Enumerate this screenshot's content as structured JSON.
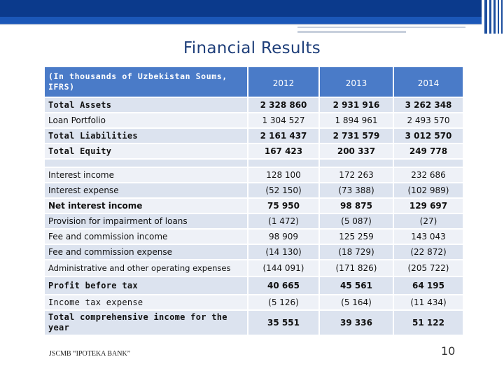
{
  "title": "Financial Results",
  "table": {
    "header_label": "(In thousands of Uzbekistan Soums, IFRS)",
    "years": [
      "2012",
      "2013",
      "2014"
    ],
    "rows": [
      {
        "label": "Total Assets",
        "values": [
          "2 328 860",
          "2 931 916",
          "3 262 348"
        ]
      },
      {
        "label": "Loan Portfolio",
        "values": [
          "1 304 527",
          "1 894 961",
          "2 493 570"
        ]
      },
      {
        "label": "Total Liabilities",
        "values": [
          "2 161 437",
          "2 731 579",
          "3 012 570"
        ]
      },
      {
        "label": "Total Equity",
        "values": [
          "167 423",
          "200 337",
          "249 778"
        ]
      },
      {
        "label": "Interest income",
        "values": [
          "128 100",
          "172 263",
          "232 686"
        ]
      },
      {
        "label": "Interest expense",
        "values": [
          "(52 150)",
          "(73 388)",
          "(102 989)"
        ]
      },
      {
        "label": "Net interest income",
        "values": [
          "75 950",
          "98 875",
          "129 697"
        ]
      },
      {
        "label": "Provision for impairment of loans",
        "values": [
          "(1 472)",
          "(5 087)",
          "(27)"
        ]
      },
      {
        "label": "Fee and commission income",
        "values": [
          "98 909",
          "125 259",
          "143 043"
        ]
      },
      {
        "label": "Fee and commission expense",
        "values": [
          "(14 130)",
          "(18 729)",
          "(22 872)"
        ]
      },
      {
        "label": "Administrative and other operating expenses",
        "values": [
          "(144 091)",
          "(171 826)",
          "(205 722)"
        ]
      },
      {
        "label": "Profit before tax",
        "values": [
          "40 665",
          "45 561",
          "64 195"
        ]
      },
      {
        "label": "Income tax expense",
        "values": [
          "(5 126)",
          "(5 164)",
          "(11 434)"
        ]
      },
      {
        "label": "Total comprehensive income for the year",
        "values": [
          "35 551",
          "39 336",
          "51 122"
        ]
      }
    ]
  },
  "footer": "JSCMB “IPOTEKA BANK”",
  "page_number": "10"
}
